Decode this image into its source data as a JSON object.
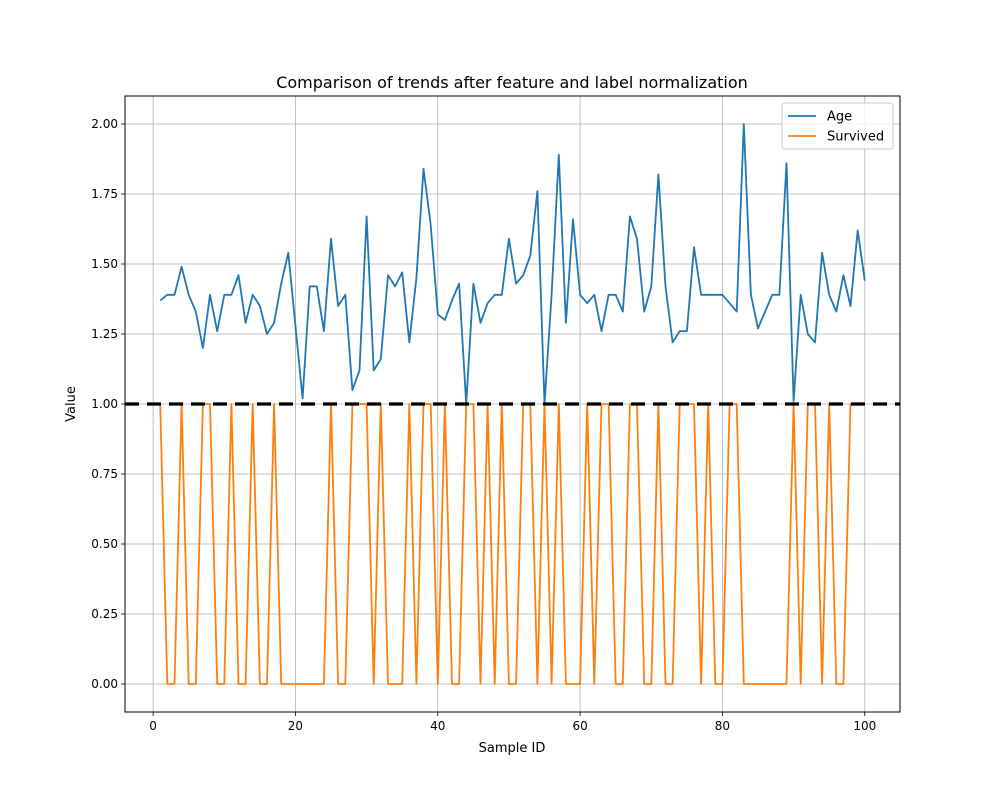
{
  "chart_data": {
    "type": "line",
    "title": "Comparison of trends after feature and label normalization",
    "xlabel": "Sample ID",
    "ylabel": "Value",
    "xlim": [
      -3.95,
      104.95
    ],
    "ylim": [
      -0.1,
      2.1
    ],
    "xticks": [
      0,
      20,
      40,
      60,
      80,
      100
    ],
    "yticks": [
      0.0,
      0.25,
      0.5,
      0.75,
      1.0,
      1.25,
      1.5,
      1.75,
      2.0
    ],
    "ytick_labels": [
      "0.00",
      "0.25",
      "0.50",
      "0.75",
      "1.00",
      "1.25",
      "1.50",
      "1.75",
      "2.00"
    ],
    "grid": true,
    "legend_position": "top-right",
    "reference_line": {
      "y": 1.0,
      "color": "#000000",
      "style": "dashed"
    },
    "x_start": 1,
    "series": [
      {
        "name": "Age",
        "color": "#1f77b4",
        "values": [
          1.37,
          1.39,
          1.39,
          1.49,
          1.39,
          1.33,
          1.2,
          1.39,
          1.26,
          1.39,
          1.39,
          1.46,
          1.29,
          1.39,
          1.35,
          1.25,
          1.29,
          1.43,
          1.54,
          1.28,
          1.02,
          1.42,
          1.42,
          1.26,
          1.59,
          1.35,
          1.39,
          1.05,
          1.12,
          1.67,
          1.12,
          1.16,
          1.46,
          1.42,
          1.47,
          1.22,
          1.45,
          1.84,
          1.64,
          1.32,
          1.3,
          1.37,
          1.43,
          1.0,
          1.43,
          1.29,
          1.36,
          1.39,
          1.39,
          1.59,
          1.43,
          1.46,
          1.53,
          1.76,
          1.0,
          1.39,
          1.89,
          1.29,
          1.66,
          1.39,
          1.36,
          1.39,
          1.26,
          1.39,
          1.39,
          1.33,
          1.67,
          1.59,
          1.33,
          1.42,
          1.82,
          1.42,
          1.22,
          1.26,
          1.26,
          1.56,
          1.39,
          1.39,
          1.39,
          1.39,
          1.36,
          1.33,
          2.0,
          1.39,
          1.27,
          1.33,
          1.39,
          1.39,
          1.86,
          1.01,
          1.39,
          1.25,
          1.22,
          1.54,
          1.39,
          1.33,
          1.46,
          1.35,
          1.62,
          1.44
        ]
      },
      {
        "name": "Survived",
        "color": "#ff7f0e",
        "values": [
          1,
          0,
          0,
          1,
          0,
          0,
          1,
          1,
          0,
          0,
          1,
          0,
          0,
          1,
          0,
          0,
          1,
          0,
          0,
          0,
          0,
          0,
          0,
          0,
          1,
          0,
          0,
          1,
          1,
          1,
          0,
          1,
          0,
          0,
          0,
          1,
          0,
          1,
          1,
          0,
          1,
          0,
          0,
          1,
          1,
          0,
          1,
          0,
          1,
          0,
          0,
          1,
          1,
          0,
          1,
          0,
          1,
          0,
          0,
          0,
          1,
          0,
          1,
          1,
          0,
          0,
          1,
          1,
          0,
          0,
          1,
          0,
          0,
          1,
          1,
          1,
          0,
          1,
          0,
          0,
          1,
          1,
          0,
          0,
          0,
          0,
          0,
          0,
          0,
          1,
          0,
          1,
          1,
          0,
          1,
          0,
          0,
          1,
          1,
          1
        ]
      }
    ]
  }
}
